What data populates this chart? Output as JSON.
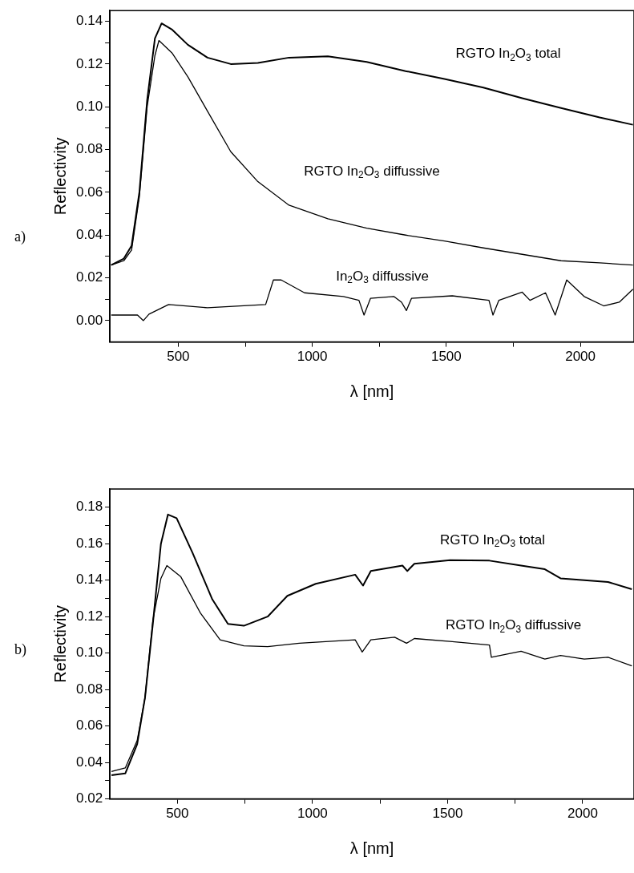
{
  "chart_data": [
    {
      "type": "line",
      "annotations": [
        "a)"
      ],
      "xlabel": "λ [nm]",
      "ylabel": "Reflectivity",
      "xlim": [
        245,
        2200
      ],
      "ylim": [
        -0.01,
        0.145
      ],
      "xticks": [
        500,
        {
          "value": 750,
          "label": null
        },
        1000,
        {
          "value": 1250,
          "label": null
        },
        1500,
        {
          "value": 1750,
          "label": null
        },
        2000
      ],
      "yticks": [
        {
          "value": 0,
          "label": "0.00"
        },
        {
          "value": 0.01,
          "label": null
        },
        0.02,
        {
          "value": 0.03,
          "label": null
        },
        0.04,
        {
          "value": 0.05,
          "label": null
        },
        0.06,
        {
          "value": 0.07,
          "label": null
        },
        0.08,
        {
          "value": 0.09,
          "label": null
        },
        {
          "value": 0.1,
          "label": "0.10"
        },
        {
          "value": 0.11,
          "label": null
        },
        0.12,
        {
          "value": 0.13,
          "label": null
        },
        0.14
      ],
      "grid": false,
      "legend": false,
      "marker": "none",
      "series": [
        {
          "name": "RGTO In$_{2}$O$_{3}$ total",
          "color": "#000000",
          "x": [
            250,
            297,
            326,
            355,
            384,
            413,
            438,
            478,
            536,
            609,
            696,
            797,
            913,
            1058,
            1203,
            1348,
            1493,
            1638,
            1783,
            1928,
            2072,
            2196
          ],
          "values": [
            0.026,
            0.029,
            0.035,
            0.06,
            0.103,
            0.132,
            0.139,
            0.136,
            0.129,
            0.123,
            0.12,
            0.1205,
            0.123,
            0.1236,
            0.121,
            0.1167,
            0.113,
            0.109,
            0.104,
            0.0994,
            0.095,
            0.0916
          ]
        },
        {
          "name": "RGTO In$_{2}$O$_{3}$ diffussive",
          "color": "#000000",
          "x": [
            250,
            297,
            326,
            355,
            384,
            413,
            428,
            478,
            536,
            609,
            696,
            797,
            913,
            1058,
            1203,
            1348,
            1493,
            1638,
            1783,
            1928,
            2072,
            2196
          ],
          "values": [
            0.026,
            0.028,
            0.033,
            0.058,
            0.1,
            0.124,
            0.131,
            0.125,
            0.114,
            0.098,
            0.079,
            0.065,
            0.054,
            0.0476,
            0.0432,
            0.04,
            0.0372,
            0.034,
            0.031,
            0.028,
            0.027,
            0.026
          ]
        },
        {
          "name": "In$_{2}$O$_{3}$ diffussive",
          "color": "#000000",
          "x": [
            250,
            348,
            370,
            391,
            464,
            609,
            826,
            855,
            884,
            971,
            1116,
            1174,
            1193,
            1217,
            1304,
            1333,
            1351,
            1370,
            1522,
            1659,
            1674,
            1696,
            1783,
            1812,
            1870,
            1906,
            1949,
            2014,
            2087,
            2145,
            2196
          ],
          "values": [
            0.0026,
            0.0026,
            0,
            0.003,
            0.0075,
            0.006,
            0.0075,
            0.019,
            0.019,
            0.013,
            0.0113,
            0.0095,
            0.0026,
            0.0104,
            0.0113,
            0.0086,
            0.0047,
            0.0104,
            0.0116,
            0.0095,
            0.0026,
            0.0095,
            0.0133,
            0.0095,
            0.013,
            0.0026,
            0.019,
            0.0113,
            0.0069,
            0.0086,
            0.0147
          ]
        }
      ]
    },
    {
      "type": "line",
      "annotations": [
        "b)"
      ],
      "xlabel": "λ [nm]",
      "ylabel": "Reflectivity",
      "xlim": [
        250,
        2190
      ],
      "ylim": [
        0.02,
        0.19
      ],
      "xticks": [
        500,
        {
          "value": 750,
          "label": null
        },
        1000,
        {
          "value": 1250,
          "label": null
        },
        1500,
        {
          "value": 1750,
          "label": null
        },
        2000
      ],
      "yticks": [
        0.02,
        {
          "value": 0.03,
          "label": null
        },
        0.04,
        {
          "value": 0.05,
          "label": null
        },
        0.06,
        {
          "value": 0.07,
          "label": null
        },
        0.08,
        {
          "value": 0.09,
          "label": null
        },
        {
          "value": 0.1,
          "label": "0.10"
        },
        {
          "value": 0.11,
          "label": null
        },
        0.12,
        {
          "value": 0.13,
          "label": null
        },
        0.14,
        {
          "value": 0.15,
          "label": null
        },
        0.16,
        {
          "value": 0.17,
          "label": null
        },
        0.18
      ],
      "grid": false,
      "legend": false,
      "marker": "none",
      "series": [
        {
          "name": "RGTO In$_{2}$O$_{3}$ total",
          "color": "#000000",
          "x": [
            256,
            307,
            351,
            380,
            409,
            439,
            465,
            497,
            556,
            629,
            687,
            746,
            834,
            907,
            1012,
            1158,
            1187,
            1216,
            1333,
            1351,
            1377,
            1509,
            1655,
            1772,
            1860,
            1918,
            2006,
            2094,
            2182
          ],
          "values": [
            0.033,
            0.034,
            0.05,
            0.0755,
            0.116,
            0.16,
            0.176,
            0.174,
            0.155,
            0.1295,
            0.116,
            0.115,
            0.12,
            0.1314,
            0.138,
            0.143,
            0.137,
            0.145,
            0.148,
            0.145,
            0.149,
            0.151,
            0.1507,
            0.148,
            0.146,
            0.141,
            0.14,
            0.139,
            0.135
          ]
        },
        {
          "name": "RGTO In$_{2}$O$_{3}$ diffussive",
          "color": "#000000",
          "x": [
            256,
            307,
            351,
            380,
            409,
            439,
            461,
            512,
            585,
            658,
            746,
            834,
            951,
            1158,
            1184,
            1216,
            1304,
            1348,
            1377,
            1509,
            1655,
            1662,
            1772,
            1860,
            1918,
            2006,
            2094,
            2182
          ],
          "values": [
            0.035,
            0.037,
            0.052,
            0.0755,
            0.118,
            0.141,
            0.148,
            0.142,
            0.122,
            0.1073,
            0.104,
            0.1035,
            0.1054,
            0.1073,
            0.1006,
            0.1073,
            0.1087,
            0.1054,
            0.108,
            0.1064,
            0.1044,
            0.0977,
            0.101,
            0.0967,
            0.0987,
            0.0967,
            0.0977,
            0.093
          ]
        }
      ]
    }
  ]
}
